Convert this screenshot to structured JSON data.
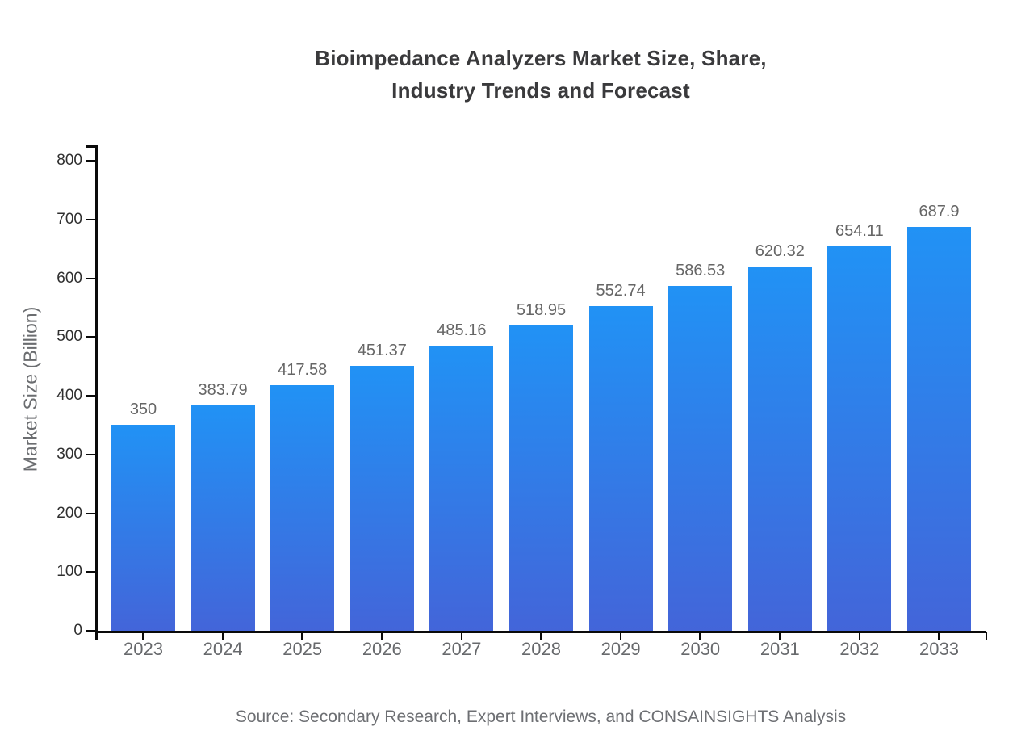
{
  "title": {
    "line1": "Bioimpedance Analyzers Market Size, Share,",
    "line2": "Industry Trends and Forecast"
  },
  "source_note": "Source: Secondary Research, Expert Interviews, and CONSAINSIGHTS Analysis",
  "chart_data": {
    "type": "bar",
    "title": "Bioimpedance Analyzers Market Size, Share, Industry Trends and Forecast",
    "title_lines": [
      "Bioimpedance Analyzers Market Size, Share,",
      "Industry Trends and Forecast"
    ],
    "categories": [
      "2023",
      "2024",
      "2025",
      "2026",
      "2027",
      "2028",
      "2029",
      "2030",
      "2031",
      "2032",
      "2033"
    ],
    "values": [
      350,
      383.79,
      417.58,
      451.37,
      485.16,
      518.95,
      552.74,
      586.53,
      620.32,
      654.11,
      687.9
    ],
    "value_labels": [
      "350",
      "383.79",
      "417.58",
      "451.37",
      "485.16",
      "518.95",
      "552.74",
      "586.53",
      "620.32",
      "654.11",
      "687.9"
    ],
    "xlabel": "",
    "ylabel": "Market Size (Billion)",
    "ylim": [
      0,
      800
    ],
    "yticks": [
      0,
      100,
      200,
      300,
      400,
      500,
      600,
      700,
      800
    ],
    "grid": false,
    "legend": false,
    "colors": {
      "bar_gradient_top": "#2192f5",
      "bar_gradient_bottom": "#4365d9",
      "axis": "#0a0a0a",
      "value_label": "#666666",
      "x_tick_label": "#67696c",
      "y_tick_label": "#2f2f2f",
      "title": "#3a3a3c",
      "source": "#6d6f73"
    }
  }
}
